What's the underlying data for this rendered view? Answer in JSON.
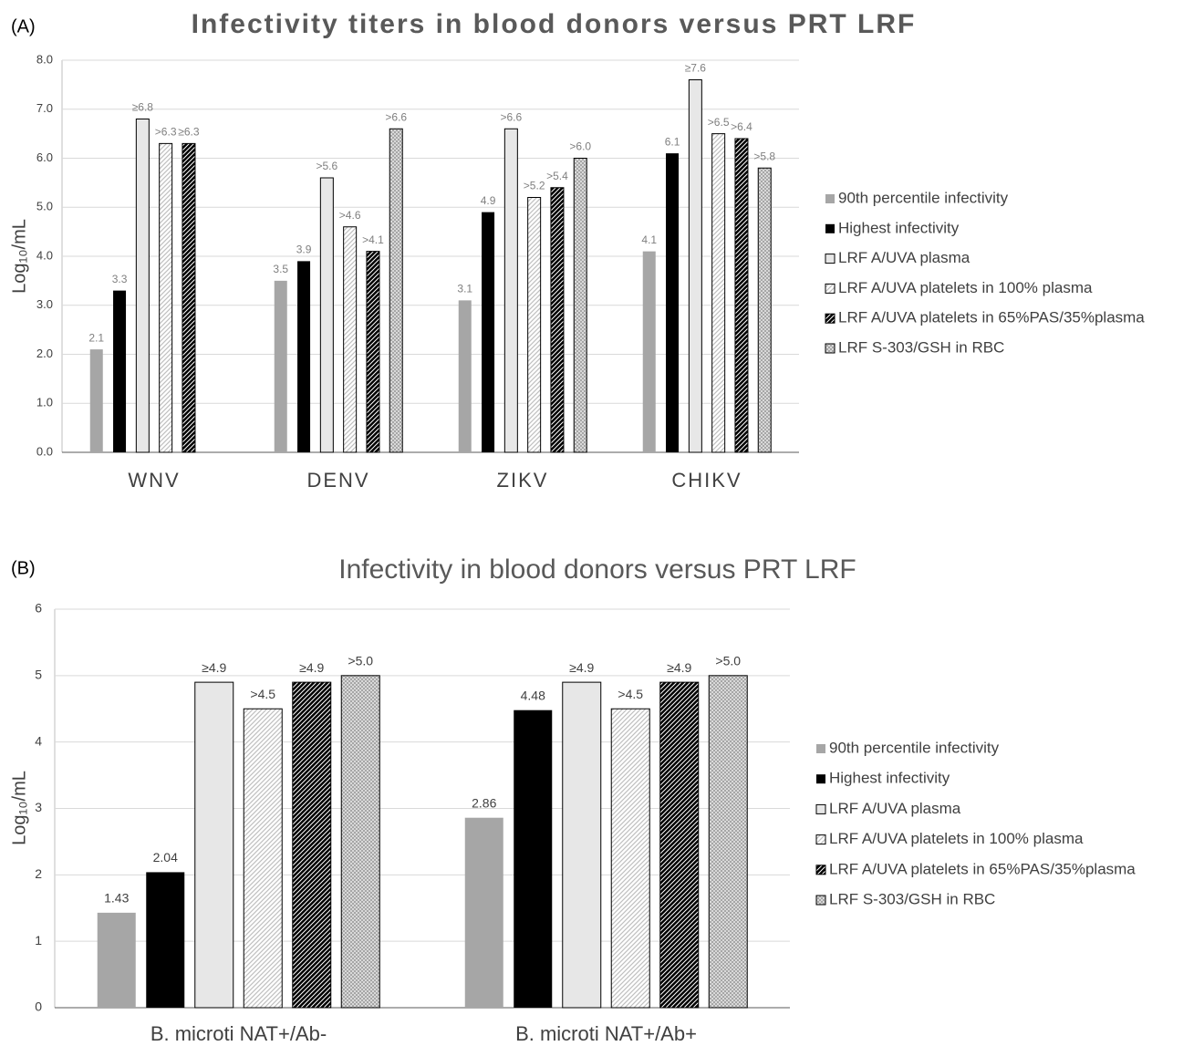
{
  "chart_data": [
    {
      "type": "bar",
      "panel_label": "(A)",
      "title": "Infectivity titers in blood donors versus PRT LRF",
      "y_label": "Log₁₀/mL",
      "categories": [
        "WNV",
        "DENV",
        "ZIKV",
        "CHIKV"
      ],
      "ylim": [
        0,
        8
      ],
      "yticks": [
        {
          "value": 0,
          "label": "0.0"
        },
        {
          "value": 1,
          "label": "1.0"
        },
        {
          "value": 2,
          "label": "2.0"
        },
        {
          "value": 3,
          "label": "3.0"
        },
        {
          "value": 4,
          "label": "4.0"
        },
        {
          "value": 5,
          "label": "5.0"
        },
        {
          "value": 6,
          "label": "6.0"
        },
        {
          "value": 7,
          "label": "7.0"
        },
        {
          "value": 8,
          "label": "8.0"
        }
      ],
      "grid": true,
      "series": [
        {
          "name": "90th percentile infectivity",
          "color": "#a6a6a6",
          "pattern": "solid",
          "values": [
            2.1,
            3.5,
            3.1,
            4.1
          ]
        },
        {
          "name": "Highest infectivity",
          "color": "#000000",
          "pattern": "solid",
          "values": [
            3.3,
            3.9,
            4.9,
            6.1
          ]
        },
        {
          "name": "LRF A/UVA plasma",
          "color": "#e7e7e7",
          "pattern": "solid",
          "values": [
            6.8,
            5.6,
            6.6,
            7.6
          ],
          "value_labels": [
            "≥6.8",
            ">5.6",
            ">6.6",
            "≥7.6"
          ]
        },
        {
          "name": "LRF A/UVA platelets in 100% plasma",
          "color": "#bfbfbf",
          "pattern": "diagonal",
          "values": [
            6.3,
            4.6,
            5.2,
            6.5
          ],
          "value_labels": [
            ">6.3",
            ">4.6",
            ">5.2",
            ">6.5"
          ]
        },
        {
          "name": "LRF A/UVA platelets in 65%PAS/35%plasma",
          "color": "#000000",
          "pattern": "dense-diagonal",
          "values": [
            6.3,
            4.1,
            5.4,
            6.4
          ],
          "value_labels": [
            "≥6.3",
            ">4.1",
            ">5.4",
            ">6.4"
          ]
        },
        {
          "name": "LRF S-303/GSH in RBC",
          "color": "#a6a6a6",
          "pattern": "crosshatch",
          "values": [
            null,
            6.6,
            6.0,
            5.8
          ],
          "value_labels": [
            null,
            ">6.6",
            ">6.0",
            ">5.8"
          ]
        }
      ]
    },
    {
      "type": "bar",
      "panel_label": "(B)",
      "title": "Infectivity in blood donors versus PRT LRF",
      "y_label": "Log₁₀/mL",
      "categories": [
        "B. microti NAT+/Ab-",
        "B. microti NAT+/Ab+"
      ],
      "ylim": [
        0,
        6
      ],
      "yticks": [
        0,
        1,
        2,
        3,
        4,
        5,
        6
      ],
      "grid": true,
      "series": [
        {
          "name": "90th percentile infectivity",
          "color": "#a6a6a6",
          "pattern": "solid",
          "values": [
            1.43,
            2.86
          ]
        },
        {
          "name": "Highest infectivity",
          "color": "#000000",
          "pattern": "solid",
          "values": [
            2.04,
            4.48
          ]
        },
        {
          "name": "LRF A/UVA plasma",
          "color": "#e7e7e7",
          "pattern": "solid",
          "values": [
            4.9,
            4.9
          ],
          "value_labels": [
            "≥4.9",
            "≥4.9"
          ]
        },
        {
          "name": "LRF A/UVA platelets in 100% plasma",
          "color": "#bfbfbf",
          "pattern": "diagonal",
          "values": [
            4.5,
            4.5
          ],
          "value_labels": [
            ">4.5",
            ">4.5"
          ]
        },
        {
          "name": "LRF A/UVA platelets in 65%PAS/35%plasma",
          "color": "#000000",
          "pattern": "dense-diagonal",
          "values": [
            4.9,
            4.9
          ],
          "value_labels": [
            "≥4.9",
            "≥4.9"
          ]
        },
        {
          "name": "LRF S-303/GSH in RBC",
          "color": "#a6a6a6",
          "pattern": "crosshatch",
          "values": [
            5.0,
            5.0
          ],
          "value_labels": [
            ">5.0",
            ">5.0"
          ]
        }
      ]
    }
  ]
}
